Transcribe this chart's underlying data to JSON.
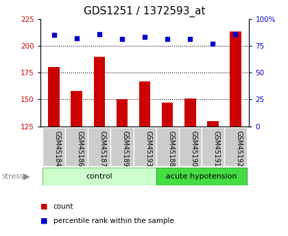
{
  "title": "GDS1251 / 1372593_at",
  "categories": [
    "GSM45184",
    "GSM45186",
    "GSM45187",
    "GSM45189",
    "GSM45193",
    "GSM45188",
    "GSM45190",
    "GSM45191",
    "GSM45192"
  ],
  "count_values": [
    180,
    158,
    190,
    150,
    167,
    147,
    151,
    130,
    213
  ],
  "percentile_values": [
    85,
    82,
    86,
    81,
    83,
    81,
    81,
    77,
    86
  ],
  "groups": [
    {
      "label": "control",
      "indices": [
        0,
        1,
        2,
        3,
        4
      ],
      "color": "#ccffcc",
      "edge_color": "#66cc66"
    },
    {
      "label": "acute hypotension",
      "indices": [
        5,
        6,
        7,
        8
      ],
      "color": "#44dd44",
      "edge_color": "#33aa33"
    }
  ],
  "ylim_left": [
    125,
    225
  ],
  "ylim_right": [
    0,
    100
  ],
  "yticks_left": [
    125,
    150,
    175,
    200,
    225
  ],
  "yticks_right": [
    0,
    25,
    50,
    75,
    100
  ],
  "bar_color": "#cc0000",
  "dot_color": "#0000cc",
  "bar_bottom": 125,
  "grid_values": [
    150,
    175,
    200
  ],
  "title_fontsize": 11,
  "axis_color_left": "#cc0000",
  "axis_color_right": "#0000cc",
  "legend_count": "count",
  "legend_percentile": "percentile rank within the sample",
  "bg_xticklabel": "#cccccc",
  "stress_color": "#888888",
  "bar_width": 0.5
}
